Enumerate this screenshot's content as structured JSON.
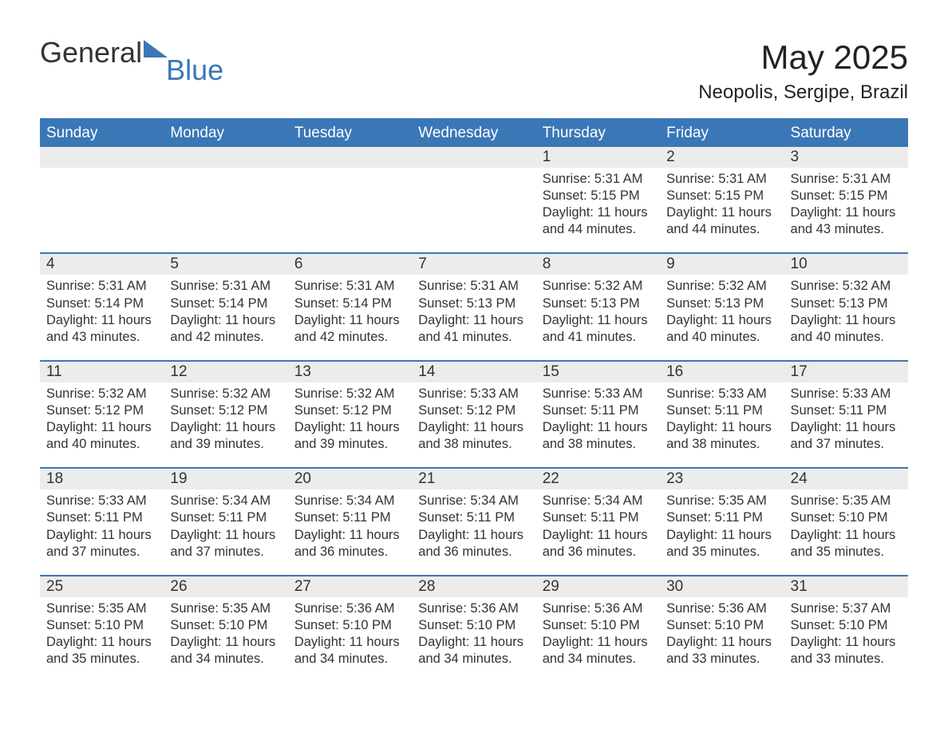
{
  "logo": {
    "text1": "General",
    "text2": "Blue",
    "triangle_color": "#3a77b7"
  },
  "title": "May 2025",
  "subtitle": "Neopolis, Sergipe, Brazil",
  "colors": {
    "header_bg": "#3a77b7",
    "header_text": "#ffffff",
    "daynum_bg": "#ececec",
    "text": "#333333",
    "rule": "#3a77b7",
    "page_bg": "#ffffff"
  },
  "typography": {
    "title_fontsize": 42,
    "subtitle_fontsize": 24,
    "header_fontsize": 19,
    "daynum_fontsize": 19,
    "body_fontsize": 16.5,
    "logo_fontsize": 36
  },
  "weekdays": [
    "Sunday",
    "Monday",
    "Tuesday",
    "Wednesday",
    "Thursday",
    "Friday",
    "Saturday"
  ],
  "weeks": [
    [
      {
        "day": "",
        "sunrise": "",
        "sunset": "",
        "daylight": ""
      },
      {
        "day": "",
        "sunrise": "",
        "sunset": "",
        "daylight": ""
      },
      {
        "day": "",
        "sunrise": "",
        "sunset": "",
        "daylight": ""
      },
      {
        "day": "",
        "sunrise": "",
        "sunset": "",
        "daylight": ""
      },
      {
        "day": "1",
        "sunrise": "Sunrise: 5:31 AM",
        "sunset": "Sunset: 5:15 PM",
        "daylight": "Daylight: 11 hours and 44 minutes."
      },
      {
        "day": "2",
        "sunrise": "Sunrise: 5:31 AM",
        "sunset": "Sunset: 5:15 PM",
        "daylight": "Daylight: 11 hours and 44 minutes."
      },
      {
        "day": "3",
        "sunrise": "Sunrise: 5:31 AM",
        "sunset": "Sunset: 5:15 PM",
        "daylight": "Daylight: 11 hours and 43 minutes."
      }
    ],
    [
      {
        "day": "4",
        "sunrise": "Sunrise: 5:31 AM",
        "sunset": "Sunset: 5:14 PM",
        "daylight": "Daylight: 11 hours and 43 minutes."
      },
      {
        "day": "5",
        "sunrise": "Sunrise: 5:31 AM",
        "sunset": "Sunset: 5:14 PM",
        "daylight": "Daylight: 11 hours and 42 minutes."
      },
      {
        "day": "6",
        "sunrise": "Sunrise: 5:31 AM",
        "sunset": "Sunset: 5:14 PM",
        "daylight": "Daylight: 11 hours and 42 minutes."
      },
      {
        "day": "7",
        "sunrise": "Sunrise: 5:31 AM",
        "sunset": "Sunset: 5:13 PM",
        "daylight": "Daylight: 11 hours and 41 minutes."
      },
      {
        "day": "8",
        "sunrise": "Sunrise: 5:32 AM",
        "sunset": "Sunset: 5:13 PM",
        "daylight": "Daylight: 11 hours and 41 minutes."
      },
      {
        "day": "9",
        "sunrise": "Sunrise: 5:32 AM",
        "sunset": "Sunset: 5:13 PM",
        "daylight": "Daylight: 11 hours and 40 minutes."
      },
      {
        "day": "10",
        "sunrise": "Sunrise: 5:32 AM",
        "sunset": "Sunset: 5:13 PM",
        "daylight": "Daylight: 11 hours and 40 minutes."
      }
    ],
    [
      {
        "day": "11",
        "sunrise": "Sunrise: 5:32 AM",
        "sunset": "Sunset: 5:12 PM",
        "daylight": "Daylight: 11 hours and 40 minutes."
      },
      {
        "day": "12",
        "sunrise": "Sunrise: 5:32 AM",
        "sunset": "Sunset: 5:12 PM",
        "daylight": "Daylight: 11 hours and 39 minutes."
      },
      {
        "day": "13",
        "sunrise": "Sunrise: 5:32 AM",
        "sunset": "Sunset: 5:12 PM",
        "daylight": "Daylight: 11 hours and 39 minutes."
      },
      {
        "day": "14",
        "sunrise": "Sunrise: 5:33 AM",
        "sunset": "Sunset: 5:12 PM",
        "daylight": "Daylight: 11 hours and 38 minutes."
      },
      {
        "day": "15",
        "sunrise": "Sunrise: 5:33 AM",
        "sunset": "Sunset: 5:11 PM",
        "daylight": "Daylight: 11 hours and 38 minutes."
      },
      {
        "day": "16",
        "sunrise": "Sunrise: 5:33 AM",
        "sunset": "Sunset: 5:11 PM",
        "daylight": "Daylight: 11 hours and 38 minutes."
      },
      {
        "day": "17",
        "sunrise": "Sunrise: 5:33 AM",
        "sunset": "Sunset: 5:11 PM",
        "daylight": "Daylight: 11 hours and 37 minutes."
      }
    ],
    [
      {
        "day": "18",
        "sunrise": "Sunrise: 5:33 AM",
        "sunset": "Sunset: 5:11 PM",
        "daylight": "Daylight: 11 hours and 37 minutes."
      },
      {
        "day": "19",
        "sunrise": "Sunrise: 5:34 AM",
        "sunset": "Sunset: 5:11 PM",
        "daylight": "Daylight: 11 hours and 37 minutes."
      },
      {
        "day": "20",
        "sunrise": "Sunrise: 5:34 AM",
        "sunset": "Sunset: 5:11 PM",
        "daylight": "Daylight: 11 hours and 36 minutes."
      },
      {
        "day": "21",
        "sunrise": "Sunrise: 5:34 AM",
        "sunset": "Sunset: 5:11 PM",
        "daylight": "Daylight: 11 hours and 36 minutes."
      },
      {
        "day": "22",
        "sunrise": "Sunrise: 5:34 AM",
        "sunset": "Sunset: 5:11 PM",
        "daylight": "Daylight: 11 hours and 36 minutes."
      },
      {
        "day": "23",
        "sunrise": "Sunrise: 5:35 AM",
        "sunset": "Sunset: 5:11 PM",
        "daylight": "Daylight: 11 hours and 35 minutes."
      },
      {
        "day": "24",
        "sunrise": "Sunrise: 5:35 AM",
        "sunset": "Sunset: 5:10 PM",
        "daylight": "Daylight: 11 hours and 35 minutes."
      }
    ],
    [
      {
        "day": "25",
        "sunrise": "Sunrise: 5:35 AM",
        "sunset": "Sunset: 5:10 PM",
        "daylight": "Daylight: 11 hours and 35 minutes."
      },
      {
        "day": "26",
        "sunrise": "Sunrise: 5:35 AM",
        "sunset": "Sunset: 5:10 PM",
        "daylight": "Daylight: 11 hours and 34 minutes."
      },
      {
        "day": "27",
        "sunrise": "Sunrise: 5:36 AM",
        "sunset": "Sunset: 5:10 PM",
        "daylight": "Daylight: 11 hours and 34 minutes."
      },
      {
        "day": "28",
        "sunrise": "Sunrise: 5:36 AM",
        "sunset": "Sunset: 5:10 PM",
        "daylight": "Daylight: 11 hours and 34 minutes."
      },
      {
        "day": "29",
        "sunrise": "Sunrise: 5:36 AM",
        "sunset": "Sunset: 5:10 PM",
        "daylight": "Daylight: 11 hours and 34 minutes."
      },
      {
        "day": "30",
        "sunrise": "Sunrise: 5:36 AM",
        "sunset": "Sunset: 5:10 PM",
        "daylight": "Daylight: 11 hours and 33 minutes."
      },
      {
        "day": "31",
        "sunrise": "Sunrise: 5:37 AM",
        "sunset": "Sunset: 5:10 PM",
        "daylight": "Daylight: 11 hours and 33 minutes."
      }
    ]
  ]
}
